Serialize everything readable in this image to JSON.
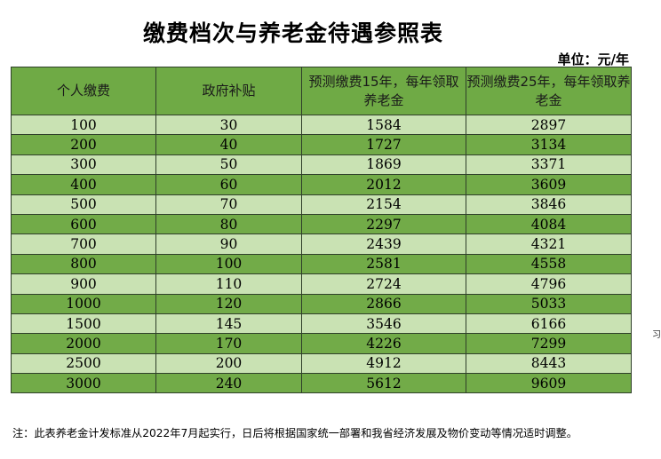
{
  "title": "缴费档次与养老金待遇参照表",
  "unit": "单位：元/年",
  "side_mark": "习",
  "table": {
    "headers": [
      "个人缴费",
      "政府补贴",
      "预测缴费15年，每年领取养老金",
      "预测缴费25年，每年领取养老金"
    ],
    "rows": [
      [
        "100",
        "30",
        "1584",
        "2897"
      ],
      [
        "200",
        "40",
        "1727",
        "3134"
      ],
      [
        "300",
        "50",
        "1869",
        "3371"
      ],
      [
        "400",
        "60",
        "2012",
        "3609"
      ],
      [
        "500",
        "70",
        "2154",
        "3846"
      ],
      [
        "600",
        "80",
        "2297",
        "4084"
      ],
      [
        "700",
        "90",
        "2439",
        "4321"
      ],
      [
        "800",
        "100",
        "2581",
        "4558"
      ],
      [
        "900",
        "110",
        "2724",
        "4796"
      ],
      [
        "1000",
        "120",
        "2866",
        "5033"
      ],
      [
        "1500",
        "145",
        "3546",
        "6166"
      ],
      [
        "2000",
        "170",
        "4226",
        "7299"
      ],
      [
        "2500",
        "200",
        "4912",
        "8443"
      ],
      [
        "3000",
        "240",
        "5612",
        "9609"
      ]
    ]
  },
  "note": "注：此表养老金计发标准从2022年7月起实行，日后将根据国家统一部署和我省经济发展及物价变动等情况适时调整。",
  "colors": {
    "header_bg": "#6faa45",
    "row_light": "#c9e2b3",
    "row_dark": "#72ab48",
    "border": "#2f3f2a"
  }
}
